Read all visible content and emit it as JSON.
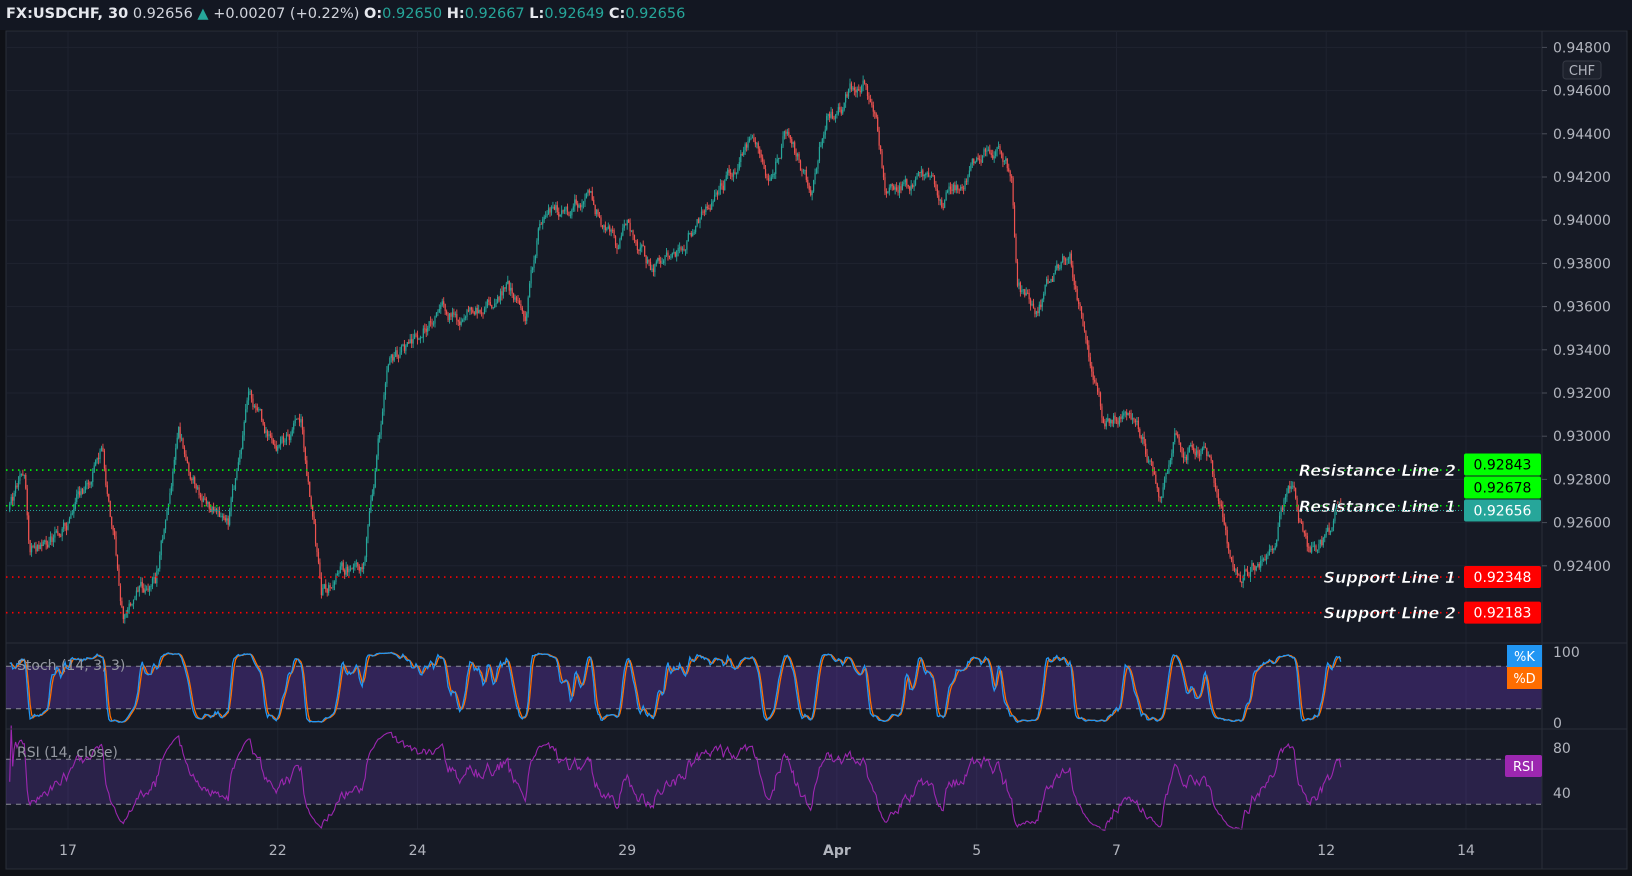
{
  "header": {
    "symbol": "FX:USDCHF, 30",
    "last": "0.92656",
    "change": "+0.00207 (+0.22%)",
    "o_label": "O:",
    "o": "0.92650",
    "h_label": "H:",
    "h": "0.92667",
    "l_label": "L:",
    "l": "0.92649",
    "c_label": "C:",
    "c": "0.92656",
    "direction_icon": "triangle-up"
  },
  "currency_badge": "CHF",
  "colors": {
    "background": "#161a25",
    "up": "#26a69a",
    "down": "#ef5350",
    "resistance": "#00ff00",
    "support": "#ff0000",
    "stoch_k": "#2196f3",
    "stoch_d": "#ff6d00",
    "rsi": "#9c27b0"
  },
  "chart_data": [
    {
      "type": "candlestick",
      "interval": "30",
      "price_axis": {
        "ticks": [
          "0.94800",
          "0.94600",
          "0.94400",
          "0.94200",
          "0.94000",
          "0.93800",
          "0.93600",
          "0.93400",
          "0.93200",
          "0.93000",
          "0.92800",
          "0.92600",
          "0.92400"
        ],
        "ylim": [
          0.9205,
          0.9482
        ]
      },
      "time_axis": {
        "ticks": [
          {
            "label": "17",
            "date": "03-17"
          },
          {
            "label": "22",
            "date": "03-22"
          },
          {
            "label": "24",
            "date": "03-24"
          },
          {
            "label": "29",
            "date": "03-29"
          },
          {
            "label": "Apr",
            "date": "04-01"
          },
          {
            "label": "5",
            "date": "04-05"
          },
          {
            "label": "7",
            "date": "04-07"
          },
          {
            "label": "12",
            "date": "04-12"
          },
          {
            "label": "14",
            "date": "04-14"
          }
        ],
        "trading_days": [
          "03-16",
          "03-17",
          "03-18",
          "03-19",
          "03-22",
          "03-23",
          "03-24",
          "03-25",
          "03-26",
          "03-29",
          "03-30",
          "03-31",
          "04-01",
          "04-02",
          "04-05",
          "04-06",
          "04-07",
          "04-08",
          "04-09",
          "04-12",
          "04-13",
          "04-14"
        ]
      },
      "price_path": [
        [
          "03-16 04:00",
          0.9266
        ],
        [
          "03-16 09:00",
          0.92828
        ],
        [
          "03-16 11:00",
          0.92467
        ],
        [
          "03-16 18:00",
          0.92515
        ],
        [
          "03-17 00:00",
          0.9261
        ],
        [
          "03-17 12:00",
          0.92925
        ],
        [
          "03-17 19:00",
          0.92178
        ],
        [
          "03-18 06:00",
          0.9232
        ],
        [
          "03-18 14:00",
          0.92997
        ],
        [
          "03-18 20:00",
          0.92756
        ],
        [
          "03-19 07:00",
          0.92563
        ],
        [
          "03-19 14:00",
          0.93165
        ],
        [
          "03-19 23:00",
          0.92925
        ],
        [
          "03-22 08:00",
          0.93069
        ],
        [
          "03-22 15:00",
          0.92275
        ],
        [
          "03-23 06:00",
          0.92443
        ],
        [
          "03-23 14:00",
          0.93334
        ],
        [
          "03-24 00:00",
          0.93454
        ],
        [
          "03-24 08:00",
          0.93623
        ],
        [
          "03-24 16:00",
          0.93527
        ],
        [
          "03-25 07:00",
          0.93719
        ],
        [
          "03-25 13:00",
          0.93527
        ],
        [
          "03-25 18:00",
          0.93984
        ],
        [
          "03-26 10:00",
          0.94128
        ],
        [
          "03-26 21:00",
          0.93864
        ],
        [
          "03-29 00:00",
          0.93984
        ],
        [
          "03-29 08:00",
          0.93767
        ],
        [
          "03-29 20:00",
          0.93912
        ],
        [
          "03-30 07:00",
          0.94128
        ],
        [
          "03-30 18:00",
          0.94345
        ],
        [
          "03-31 01:00",
          0.94224
        ],
        [
          "03-31 06:00",
          0.94417
        ],
        [
          "03-31 15:00",
          0.94128
        ],
        [
          "03-31 21:00",
          0.94537
        ],
        [
          "04-01 00:00",
          0.94489
        ],
        [
          "04-01 09:00",
          0.94682
        ],
        [
          "04-01 14:00",
          0.94393
        ],
        [
          "04-01 17:00",
          0.94128
        ],
        [
          "04-02 03:00",
          0.942
        ],
        [
          "04-02 12:00",
          0.9408
        ],
        [
          "04-02 23:00",
          0.94249
        ],
        [
          "04-05 06:00",
          0.94345
        ],
        [
          "04-05 12:00",
          0.942
        ],
        [
          "04-05 14:00",
          0.93671
        ],
        [
          "04-05 20:00",
          0.93599
        ],
        [
          "04-06 08:00",
          0.93888
        ],
        [
          "04-06 14:00",
          0.93382
        ],
        [
          "04-06 19:00",
          0.93093
        ],
        [
          "04-07 00:00",
          0.93117
        ],
        [
          "04-07 06:00",
          0.93093
        ],
        [
          "04-07 15:00",
          0.92732
        ],
        [
          "04-07 20:00",
          0.92997
        ],
        [
          "04-08 08:00",
          0.92876
        ],
        [
          "04-08 14:00",
          0.92515
        ],
        [
          "04-08 19:00",
          0.92347
        ],
        [
          "04-09 06:00",
          0.92515
        ],
        [
          "04-09 12:00",
          0.9278
        ],
        [
          "04-09 18:00",
          0.92467
        ],
        [
          "04-12 00:00",
          0.92539
        ],
        [
          "04-12 05:00",
          0.92656
        ]
      ],
      "levels": [
        {
          "name": "Resistance Line 2",
          "price": 0.92843,
          "label": "0.92843",
          "color": "#00ff00",
          "text_color": "#000000"
        },
        {
          "name": "Resistance Line 1",
          "price": 0.92678,
          "label": "0.92678",
          "color": "#00ff00",
          "text_color": "#000000"
        },
        {
          "name": "Support Line 1",
          "price": 0.92348,
          "label": "0.92348",
          "color": "#ff0000",
          "text_color": "#ffffff"
        },
        {
          "name": "Support Line 2",
          "price": 0.92183,
          "label": "0.92183",
          "color": "#ff0000",
          "text_color": "#ffffff"
        }
      ],
      "last_price": {
        "price": 0.92656,
        "label": "0.92656",
        "color": "#26a69a"
      }
    },
    {
      "type": "line",
      "title": "Stoch (14, 3, 3)",
      "series": [
        {
          "name": "%K"
        },
        {
          "name": "%D"
        }
      ],
      "ylim": [
        0,
        100
      ],
      "ticks": [
        "100",
        "0"
      ],
      "bands": [
        20,
        80
      ]
    },
    {
      "type": "line",
      "title": "RSI (14, close)",
      "series": [
        {
          "name": "RSI"
        }
      ],
      "ticks": [
        "80",
        "40"
      ],
      "bands": [
        30,
        70
      ]
    }
  ]
}
